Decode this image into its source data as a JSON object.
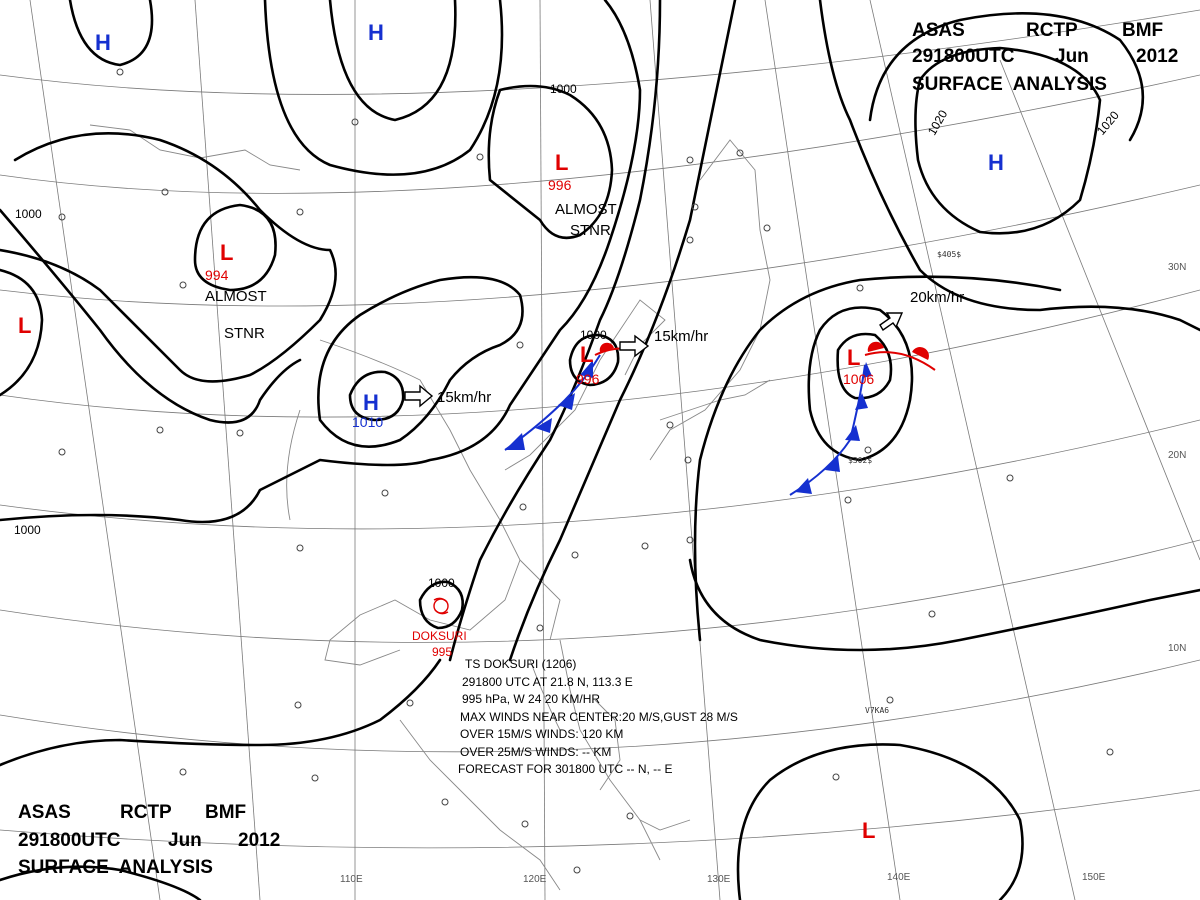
{
  "header": {
    "line1": [
      "ASAS",
      "RCTP",
      "BMF"
    ],
    "line2": [
      "291800UTC",
      "Jun",
      "2012"
    ],
    "line3": "SURFACE  ANALYSIS"
  },
  "isobar_labels": [
    "1000",
    "1000",
    "1000",
    "1000",
    "1000",
    "1020",
    "1020"
  ],
  "systems": {
    "highs": [
      {
        "label": "H",
        "pressure": ""
      },
      {
        "label": "H",
        "pressure": ""
      },
      {
        "label": "H",
        "pressure": "1010"
      },
      {
        "label": "H",
        "pressure": ""
      }
    ],
    "lows": [
      {
        "label": "L",
        "pressure": "996",
        "note1": "ALMOST",
        "note2": "STNR"
      },
      {
        "label": "L",
        "pressure": "994",
        "note1": "ALMOST",
        "note2": "STNR"
      },
      {
        "label": "L",
        "pressure": ""
      },
      {
        "label": "L",
        "pressure": "996"
      },
      {
        "label": "L",
        "pressure": "1006"
      },
      {
        "label": "L",
        "pressure": ""
      }
    ]
  },
  "motions": [
    "15km/hr",
    "15km/hr",
    "20km/hr"
  ],
  "typhoon": {
    "name": "DOKSURI",
    "pressure": "995",
    "lines": [
      "TS  DOKSURI  (1206)",
      "291800 UTC  AT 21.8 N, 113.3 E",
      "995 hPa, W  24  20 KM/HR",
      "MAX WINDS NEAR CENTER:20 M/S,GUST 28 M/S",
      "OVER 15M/S WINDS: 120 KM",
      "OVER 25M/S WINDS: -- KM",
      "FORECAST FOR 301800 UTC -- N, -- E"
    ]
  },
  "longitudes": [
    "110E",
    "120E",
    "130E",
    "140E",
    "150E"
  ],
  "latitudes": [
    "30N",
    "20N",
    "10N"
  ],
  "ship_codes": [
    "V7KA6",
    "$302$",
    "$405$"
  ]
}
